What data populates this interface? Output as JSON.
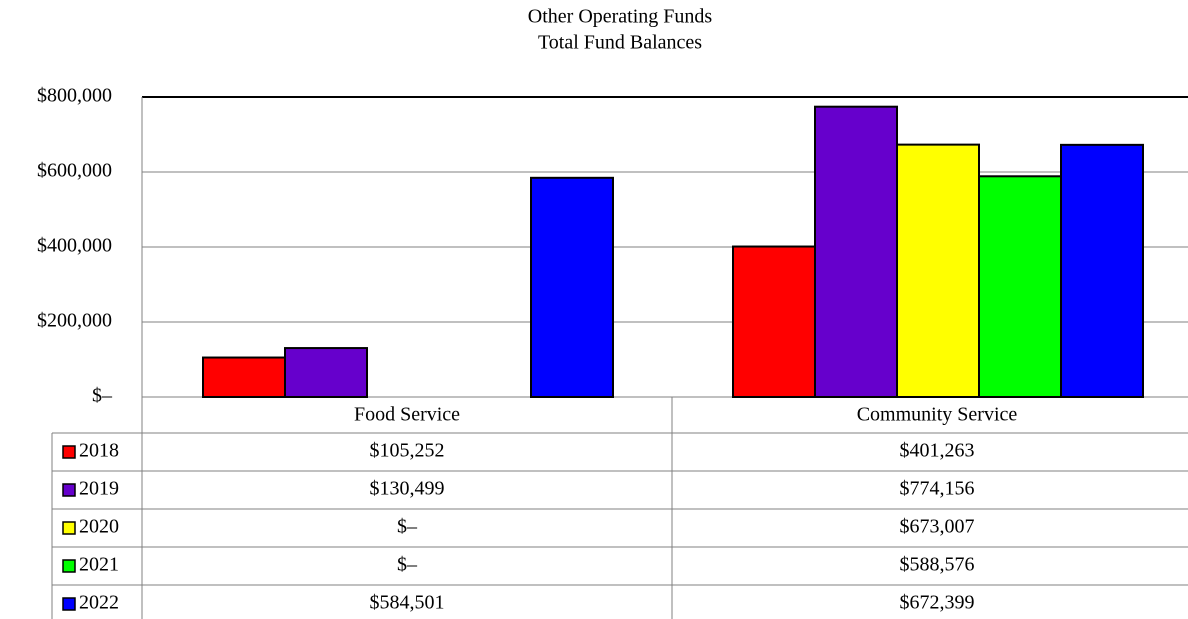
{
  "chart_data": {
    "type": "bar",
    "title": "Other Operating Funds",
    "subtitle": "Total Fund Balances",
    "categories": [
      "Food Service",
      "Community Service"
    ],
    "series": [
      {
        "name": "2018",
        "color": "#ff0000",
        "values": [
          105252,
          401263
        ],
        "value_labels": [
          "$105,252",
          "$401,263"
        ]
      },
      {
        "name": "2019",
        "color": "#6600cc",
        "values": [
          130499,
          774156
        ],
        "value_labels": [
          "$130,499",
          "$774,156"
        ]
      },
      {
        "name": "2020",
        "color": "#ffff00",
        "values": [
          0,
          673007
        ],
        "value_labels": [
          "$–",
          "$673,007"
        ]
      },
      {
        "name": "2021",
        "color": "#00ff00",
        "values": [
          0,
          588576
        ],
        "value_labels": [
          "$–",
          "$588,576"
        ]
      },
      {
        "name": "2022",
        "color": "#0000ff",
        "values": [
          584501,
          672399
        ],
        "value_labels": [
          "$584,501",
          "$672,399"
        ]
      }
    ],
    "ylim": [
      0,
      800000
    ],
    "yticks": [
      {
        "value": 0,
        "label": "$–"
      },
      {
        "value": 200000,
        "label": "$200,000"
      },
      {
        "value": 400000,
        "label": "$400,000"
      },
      {
        "value": 600000,
        "label": "$600,000"
      },
      {
        "value": 800000,
        "label": "$800,000"
      }
    ],
    "grid": true
  }
}
